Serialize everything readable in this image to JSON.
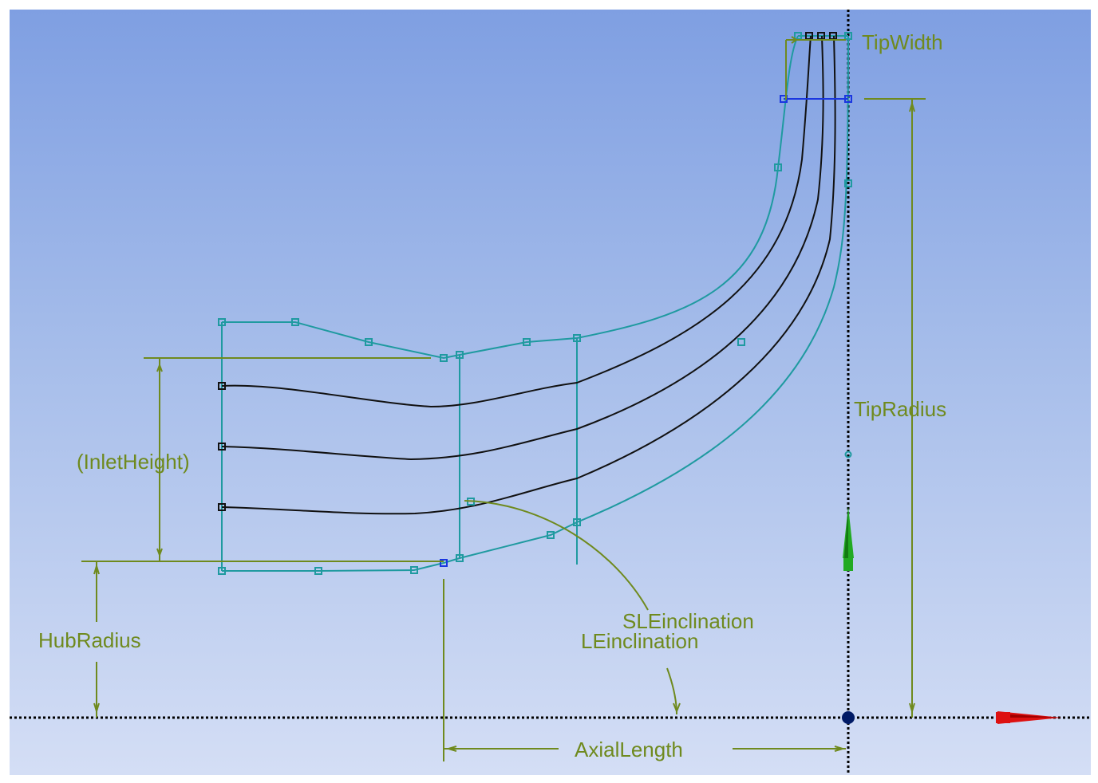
{
  "dimensions": {
    "tip_width": "TipWidth",
    "tip_radius": "TipRadius",
    "inlet_height": "(InletHeight)",
    "hub_radius": "HubRadius",
    "sle_inclination": "SLEinclination",
    "le_inclination": "LEinclination",
    "axial_length": "AxialLength"
  },
  "colors": {
    "dimension": "#6f8a1e",
    "profile": "#1f9aa0",
    "streamline": "#111111",
    "selected": "#1a36e0",
    "axis_y": "#22aa22",
    "axis_x": "#dd1111"
  },
  "icons": {
    "origin": "origin-point-icon",
    "y_axis": "y-axis-arrow-icon",
    "x_axis": "x-axis-arrow-icon"
  }
}
